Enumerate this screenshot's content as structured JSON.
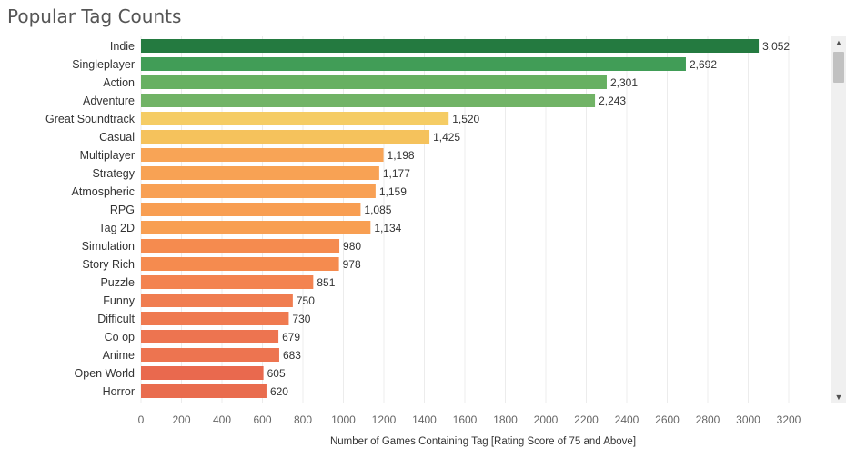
{
  "title": "Popular Tag Counts",
  "chart_data": {
    "type": "bar",
    "orientation": "horizontal",
    "title": "Popular Tag Counts",
    "xlabel": "Number of Games Containing Tag [Rating Score of 75 and Above]",
    "ylabel": "",
    "xlim": [
      0,
      3200
    ],
    "xticks": [
      0,
      200,
      400,
      600,
      800,
      1000,
      1200,
      1400,
      1600,
      1800,
      2000,
      2200,
      2400,
      2600,
      2800,
      3000,
      3200
    ],
    "grid": true,
    "categories": [
      "Indie",
      "Singleplayer",
      "Action",
      "Adventure",
      "Great Soundtrack",
      "Casual",
      "Multiplayer",
      "Strategy",
      "Atmospheric",
      "RPG",
      "Tag 2D",
      "Simulation",
      "Story Rich",
      "Puzzle",
      "Funny",
      "Difficult",
      "Co op",
      "Anime",
      "Open World",
      "Horror"
    ],
    "values": [
      3052,
      2692,
      2301,
      2243,
      1520,
      1425,
      1198,
      1177,
      1159,
      1085,
      1134,
      980,
      978,
      851,
      750,
      730,
      679,
      683,
      605,
      620
    ],
    "value_labels": [
      "3,052",
      "2,692",
      "2,301",
      "2,243",
      "1,520",
      "1,425",
      "1,198",
      "1,177",
      "1,159",
      "1,085",
      "1,134",
      "980",
      "978",
      "851",
      "750",
      "730",
      "679",
      "683",
      "605",
      "620"
    ],
    "partial_next_value": 620,
    "colors": [
      "#247a40",
      "#419d57",
      "#67b062",
      "#71b366",
      "#f5cc64",
      "#f5c25c",
      "#f8a456",
      "#f8a254",
      "#f8a054",
      "#f89e52",
      "#f89f52",
      "#f58b4f",
      "#f58b4f",
      "#f38350",
      "#f07d50",
      "#ef7a50",
      "#ed7450",
      "#ed7450",
      "#e9694e",
      "#e96c4e",
      "#e8694d"
    ]
  }
}
